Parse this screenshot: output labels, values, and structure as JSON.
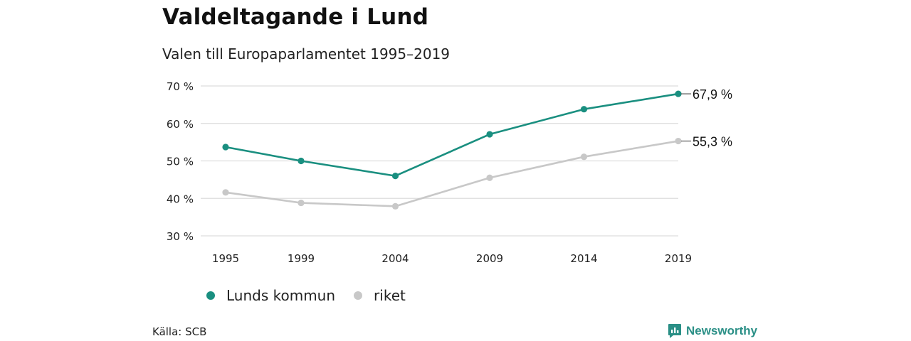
{
  "header": {
    "title": "Valdeltagande i Lund",
    "subtitle": "Valen till Europaparlamentet 1995–2019"
  },
  "footer": {
    "source": "Källa: SCB",
    "brand": "Newsworthy"
  },
  "colors": {
    "lund": "#1a8f80",
    "riket": "#c8c8c8",
    "grid": "#dddddd",
    "brand": "#2a8f86"
  },
  "chart_data": {
    "type": "line",
    "x": [
      "1995",
      "1999",
      "2004",
      "2009",
      "2014",
      "2019"
    ],
    "x_numeric": [
      1995,
      1999,
      2004,
      2009,
      2014,
      2019
    ],
    "ylim": [
      30,
      70
    ],
    "yticks": [
      30,
      40,
      50,
      60,
      70
    ],
    "ytick_labels": [
      "30 %",
      "40 %",
      "50 %",
      "60 %",
      "70 %"
    ],
    "grid": true,
    "legend_position": "bottom-left",
    "series": [
      {
        "name": "Lunds kommun",
        "values": [
          53.7,
          50.0,
          46.0,
          57.1,
          63.8,
          67.9
        ],
        "end_label": "67,9 %",
        "color": "#1a8f80"
      },
      {
        "name": "riket",
        "values": [
          41.6,
          38.8,
          37.9,
          45.5,
          51.1,
          55.3
        ],
        "end_label": "55,3 %",
        "color": "#c8c8c8"
      }
    ]
  }
}
